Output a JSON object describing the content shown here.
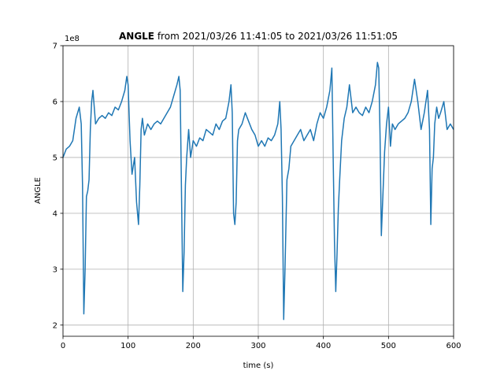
{
  "chart_data": {
    "type": "line",
    "title_bold": "ANGLE",
    "title_rest": " from 2021/03/26 11:41:05 to 2021/03/26 11:51:05",
    "xlabel": "time (s)",
    "ylabel": "ANGLE",
    "offset_text": "1e8",
    "xlim": [
      0,
      600
    ],
    "ylim": [
      1.8,
      7.0
    ],
    "xticks": [
      0,
      100,
      200,
      300,
      400,
      500,
      600
    ],
    "yticks": [
      2,
      3,
      4,
      5,
      6,
      7
    ],
    "grid": true,
    "series_color": "#1f77b4",
    "series": [
      {
        "x": [
          0,
          5,
          10,
          15,
          20,
          25,
          28,
          30,
          32,
          34,
          36,
          38,
          40,
          42,
          44,
          46,
          50,
          55,
          60,
          65,
          70,
          75,
          80,
          85,
          90,
          95,
          98,
          100,
          103,
          106,
          110,
          113,
          116,
          118,
          120,
          122,
          125,
          130,
          135,
          140,
          145,
          150,
          155,
          160,
          165,
          170,
          175,
          178,
          180,
          182,
          184,
          186,
          188,
          190,
          193,
          196,
          200,
          205,
          210,
          215,
          220,
          225,
          230,
          235,
          240,
          245,
          250,
          255,
          258,
          260,
          262,
          264,
          266,
          268,
          270,
          275,
          280,
          285,
          290,
          295,
          300,
          305,
          310,
          315,
          320,
          325,
          330,
          333,
          335,
          337,
          339,
          341,
          344,
          347,
          350,
          355,
          360,
          365,
          370,
          375,
          380,
          385,
          390,
          395,
          400,
          405,
          410,
          413,
          415,
          417,
          419,
          421,
          423,
          425,
          428,
          432,
          436,
          440,
          445,
          450,
          455,
          460,
          465,
          470,
          475,
          480,
          483,
          485,
          487,
          489,
          491,
          494,
          497,
          500,
          503,
          506,
          510,
          515,
          520,
          525,
          530,
          535,
          540,
          545,
          550,
          555,
          560,
          563,
          565,
          567,
          569,
          571,
          574,
          577,
          580,
          585,
          590,
          595,
          600
        ],
        "y": [
          5.0,
          5.15,
          5.2,
          5.3,
          5.7,
          5.9,
          5.6,
          4.5,
          2.2,
          3.0,
          4.3,
          4.4,
          4.6,
          5.5,
          6.0,
          6.2,
          5.6,
          5.7,
          5.75,
          5.7,
          5.8,
          5.75,
          5.9,
          5.85,
          6.0,
          6.2,
          6.45,
          6.3,
          5.3,
          4.7,
          5.0,
          4.2,
          3.8,
          4.5,
          5.5,
          5.7,
          5.4,
          5.6,
          5.5,
          5.6,
          5.65,
          5.6,
          5.7,
          5.8,
          5.9,
          6.1,
          6.3,
          6.45,
          6.2,
          4.4,
          2.6,
          3.3,
          4.5,
          5.0,
          5.5,
          5.0,
          5.3,
          5.2,
          5.35,
          5.3,
          5.5,
          5.45,
          5.4,
          5.6,
          5.5,
          5.65,
          5.7,
          6.0,
          6.3,
          5.8,
          4.0,
          3.8,
          4.2,
          5.3,
          5.5,
          5.6,
          5.8,
          5.65,
          5.5,
          5.4,
          5.2,
          5.3,
          5.2,
          5.35,
          5.3,
          5.4,
          5.6,
          6.0,
          5.5,
          4.3,
          2.1,
          3.0,
          4.6,
          4.8,
          5.2,
          5.3,
          5.4,
          5.5,
          5.3,
          5.4,
          5.5,
          5.3,
          5.6,
          5.8,
          5.7,
          5.9,
          6.2,
          6.6,
          5.0,
          3.5,
          2.6,
          3.3,
          4.1,
          4.6,
          5.3,
          5.7,
          5.9,
          6.3,
          5.8,
          5.9,
          5.8,
          5.75,
          5.9,
          5.8,
          6.0,
          6.3,
          6.7,
          6.6,
          5.4,
          3.6,
          4.2,
          5.1,
          5.6,
          5.9,
          5.2,
          5.6,
          5.5,
          5.6,
          5.65,
          5.7,
          5.8,
          6.0,
          6.4,
          6.0,
          5.5,
          5.8,
          6.2,
          5.5,
          3.8,
          4.8,
          5.0,
          5.6,
          5.9,
          5.7,
          5.8,
          6.0,
          5.5,
          5.6,
          5.5
        ]
      }
    ]
  }
}
